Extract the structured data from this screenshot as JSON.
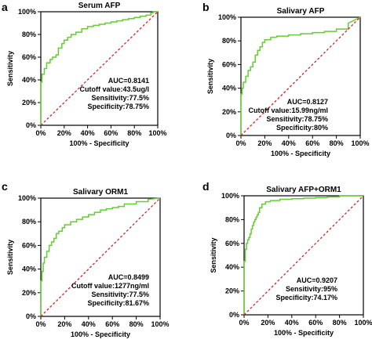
{
  "panels": [
    {
      "letter": "a",
      "title": "Serum AFP",
      "xlabel": "100% - Specificity",
      "ylabel": "Sensitivity",
      "stats": [
        "AUC=0.8141",
        "Cutoff value:43.5ug/l",
        "Sensitivity:77.5%",
        "Specificity:78.75%"
      ]
    },
    {
      "letter": "b",
      "title": "Salivary AFP",
      "xlabel": "100% - Specificity",
      "ylabel": "Sensitivity",
      "stats": [
        "AUC=0.8127",
        "Cutoff value:15.99ng/ml",
        "Sensitivity:78.75%",
        "Specificity:80%"
      ]
    },
    {
      "letter": "c",
      "title": "Salivary ORM1",
      "xlabel": "100% - Specificity",
      "ylabel": "Sensitivity",
      "stats": [
        "AUC=0.8499",
        "Cutoff value:1277ng/ml",
        "Sensitivity:77.5%",
        "Specificity:81.67%"
      ]
    },
    {
      "letter": "d",
      "title": "Salivary AFP+ORM1",
      "xlabel": "100% - Specificity",
      "ylabel": "Sensitivity",
      "stats": [
        "AUC=0.9207",
        "Sensitivity:95%",
        "Specificity:74.17%"
      ]
    }
  ],
  "chart_data": [
    {
      "type": "line",
      "title": "Serum AFP",
      "xlabel": "100% - Specificity",
      "ylabel": "Sensitivity",
      "xlim": [
        0,
        100
      ],
      "ylim": [
        0,
        100
      ],
      "xticks": [
        "0%",
        "20%",
        "40%",
        "60%",
        "80%",
        "100%"
      ],
      "yticks": [
        "0%",
        "20%",
        "40%",
        "60%",
        "80%",
        "100%"
      ],
      "grid": false,
      "series": [
        {
          "color": "#66cc33",
          "x": [
            0,
            0,
            1,
            1,
            3,
            3,
            5,
            5,
            8,
            8,
            10,
            10,
            13,
            13,
            15,
            15,
            18,
            18,
            20,
            20,
            23,
            23,
            26,
            26,
            30,
            30,
            35,
            35,
            40,
            40,
            45,
            45,
            50,
            50,
            55,
            55,
            60,
            60,
            65,
            65,
            70,
            70,
            75,
            75,
            80,
            80,
            85,
            85,
            90,
            90,
            94,
            94,
            96,
            96,
            100
          ],
          "y": [
            0,
            38,
            38,
            45,
            45,
            50,
            50,
            55,
            55,
            58,
            58,
            60,
            60,
            62,
            62,
            68,
            68,
            72,
            72,
            75,
            75,
            77.5,
            77.5,
            80,
            80,
            82,
            82,
            85,
            85,
            87,
            87,
            88,
            88,
            89,
            89,
            90,
            90,
            91,
            91,
            92,
            92,
            93,
            93,
            94,
            94,
            95,
            95,
            96,
            96,
            97,
            97,
            99,
            99,
            100,
            100
          ]
        },
        {
          "type": "reference",
          "color": "#dd2222",
          "x": [
            0,
            100
          ],
          "y": [
            0,
            100
          ]
        }
      ]
    },
    {
      "type": "line",
      "title": "Salivary AFP",
      "xlabel": "100% - Specificity",
      "ylabel": "Sensitivity",
      "xlim": [
        0,
        100
      ],
      "ylim": [
        0,
        100
      ],
      "xticks": [
        "0%",
        "20%",
        "40%",
        "60%",
        "80%",
        "100%"
      ],
      "yticks": [
        "0%",
        "20%",
        "40%",
        "60%",
        "80%",
        "100%"
      ],
      "grid": false,
      "series": [
        {
          "color": "#66cc33",
          "x": [
            0,
            0,
            1,
            1,
            2,
            2,
            4,
            4,
            6,
            6,
            8,
            8,
            10,
            10,
            12,
            12,
            14,
            14,
            16,
            16,
            18,
            18,
            20,
            20,
            25,
            25,
            30,
            30,
            40,
            40,
            50,
            50,
            60,
            60,
            70,
            70,
            80,
            80,
            90,
            90,
            100
          ],
          "y": [
            0,
            35,
            35,
            40,
            40,
            45,
            45,
            50,
            50,
            55,
            55,
            58,
            58,
            62,
            62,
            68,
            68,
            72,
            72,
            75,
            75,
            78.75,
            78.75,
            81,
            81,
            83,
            83,
            84,
            84,
            85,
            85,
            86,
            86,
            87,
            87,
            88,
            88,
            90,
            90,
            95,
            100
          ]
        },
        {
          "type": "reference",
          "color": "#dd2222",
          "x": [
            0,
            100
          ],
          "y": [
            0,
            100
          ]
        }
      ]
    },
    {
      "type": "line",
      "title": "Salivary ORM1",
      "xlabel": "100% - Specificity",
      "ylabel": "Sensitivity",
      "xlim": [
        0,
        100
      ],
      "ylim": [
        0,
        100
      ],
      "xticks": [
        "0%",
        "20%",
        "40%",
        "60%",
        "80%",
        "100%"
      ],
      "yticks": [
        "0%",
        "20%",
        "40%",
        "60%",
        "80%",
        "100%"
      ],
      "grid": false,
      "series": [
        {
          "color": "#66cc33",
          "x": [
            0,
            0,
            1,
            1,
            2,
            2,
            3,
            3,
            5,
            5,
            7,
            7,
            9,
            9,
            11,
            11,
            13,
            13,
            15,
            15,
            18,
            18,
            20,
            20,
            25,
            25,
            30,
            30,
            35,
            35,
            40,
            40,
            45,
            45,
            50,
            50,
            55,
            55,
            60,
            60,
            65,
            65,
            70,
            70,
            80,
            80,
            90,
            90,
            100
          ],
          "y": [
            0,
            30,
            30,
            38,
            38,
            45,
            45,
            50,
            50,
            55,
            55,
            60,
            60,
            63,
            63,
            66,
            66,
            70,
            70,
            72,
            72,
            75,
            75,
            77.5,
            77.5,
            80,
            80,
            82,
            82,
            84,
            84,
            86,
            86,
            88,
            88,
            90,
            90,
            91,
            91,
            92,
            92,
            93,
            93,
            95,
            95,
            97,
            97,
            99,
            100
          ]
        },
        {
          "type": "reference",
          "color": "#dd2222",
          "x": [
            0,
            100
          ],
          "y": [
            0,
            100
          ]
        }
      ]
    },
    {
      "type": "line",
      "title": "Salivary AFP+ORM1",
      "xlabel": "100% - Specificity",
      "ylabel": "Sensitivity",
      "xlim": [
        0,
        100
      ],
      "ylim": [
        0,
        100
      ],
      "xticks": [
        "0%",
        "20%",
        "40%",
        "60%",
        "80%",
        "100%"
      ],
      "yticks": [
        "0%",
        "20%",
        "40%",
        "60%",
        "80%",
        "100%"
      ],
      "grid": false,
      "series": [
        {
          "color": "#66cc33",
          "x": [
            0,
            0,
            1,
            1,
            2,
            2,
            3,
            3,
            4,
            4,
            5,
            5,
            6,
            6,
            7,
            7,
            8,
            8,
            9,
            9,
            10,
            10,
            11,
            11,
            12,
            12,
            13,
            13,
            15,
            15,
            18,
            18,
            22,
            22,
            30,
            30,
            40,
            40,
            50,
            50,
            60,
            60,
            70,
            70,
            80,
            80,
            100
          ],
          "y": [
            0,
            45,
            45,
            55,
            55,
            60,
            60,
            63,
            63,
            65,
            65,
            68,
            68,
            72,
            72,
            75,
            75,
            78,
            78,
            80,
            80,
            82,
            82,
            84,
            84,
            86,
            86,
            90,
            90,
            93,
            93,
            95,
            95,
            96,
            96,
            97,
            97,
            97.5,
            97.5,
            98,
            98,
            98.5,
            98.5,
            99,
            99,
            100,
            100
          ]
        },
        {
          "type": "reference",
          "color": "#dd2222",
          "x": [
            0,
            100
          ],
          "y": [
            0,
            100
          ]
        }
      ]
    }
  ]
}
